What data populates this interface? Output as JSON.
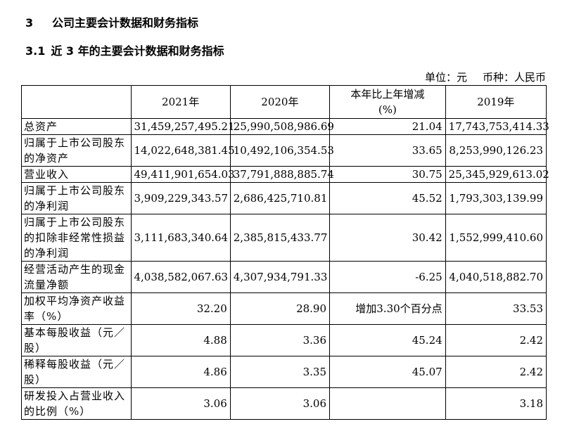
{
  "section": {
    "number": "3",
    "title": "公司主要会计数据和财务指标"
  },
  "subsection": {
    "number": "3.1",
    "title": "近 3 年的主要会计数据和财务指标"
  },
  "unit_line": {
    "unit": "单位：元",
    "currency": "币种：人民币"
  },
  "table": {
    "headers": {
      "label": "",
      "y2021": "2021年",
      "y2020": "2020年",
      "change": "本年比上年增减(%)",
      "y2019": "2019年"
    },
    "rows": [
      {
        "label": "总资产",
        "y2021": "31,459,257,495.21",
        "y2020": "25,990,508,986.69",
        "change": "21.04",
        "y2019": "17,743,753,414.33"
      },
      {
        "label": "归属于上市公司股东的净资产",
        "y2021": "14,022,648,381.45",
        "y2020": "10,492,106,354.53",
        "change": "33.65",
        "y2019": "8,253,990,126.23"
      },
      {
        "label": "营业收入",
        "y2021": "49,411,901,654.03",
        "y2020": "37,791,888,885.74",
        "change": "30.75",
        "y2019": "25,345,929,613.02"
      },
      {
        "label": "归属于上市公司股东的净利润",
        "y2021": "3,909,229,343.57",
        "y2020": "2,686,425,710.81",
        "change": "45.52",
        "y2019": "1,793,303,139.99"
      },
      {
        "label": "归属于上市公司股东的扣除非经常性损益的净利润",
        "y2021": "3,111,683,340.64",
        "y2020": "2,385,815,433.77",
        "change": "30.42",
        "y2019": "1,552,999,410.60"
      },
      {
        "label": "经营活动产生的现金流量净额",
        "y2021": "4,038,582,067.63",
        "y2020": "4,307,934,791.33",
        "change": "-6.25",
        "y2019": "4,040,518,882.70"
      },
      {
        "label": "加权平均净资产收益率（%）",
        "y2021": "32.20",
        "y2020": "28.90",
        "change": "增加3.30个百分点",
        "y2019": "33.53"
      },
      {
        "label": "基本每股收益（元／股）",
        "y2021": "4.88",
        "y2020": "3.36",
        "change": "45.24",
        "y2019": "2.42"
      },
      {
        "label": "稀释每股收益（元／股）",
        "y2021": "4.86",
        "y2020": "3.35",
        "change": "45.07",
        "y2019": "2.42"
      },
      {
        "label": "研发投入占营业收入的比例（%）",
        "y2021": "3.06",
        "y2020": "3.06",
        "change": "",
        "y2019": "3.18"
      }
    ]
  }
}
